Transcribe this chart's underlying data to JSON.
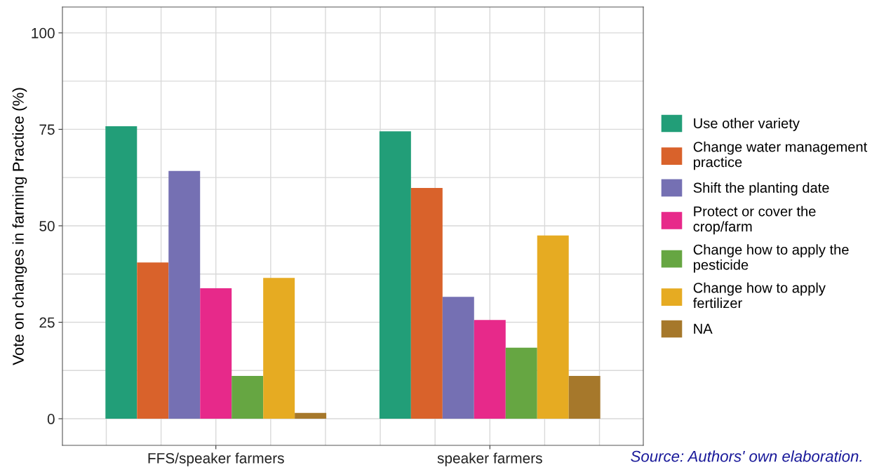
{
  "chart_data": {
    "type": "bar",
    "categories": [
      "FFS/speaker farmers",
      "speaker farmers"
    ],
    "ylabel": "Vote on changes in farming Practice (%)",
    "series": [
      {
        "name": "Use other variety",
        "color": "#229e78",
        "values": [
          75.8,
          74.5
        ]
      },
      {
        "name": "Change water management practice",
        "color": "#d9622b",
        "values": [
          40.5,
          59.8
        ]
      },
      {
        "name": "Shift the planting date",
        "color": "#7570b3",
        "values": [
          64.2,
          31.6
        ]
      },
      {
        "name": "Protect or cover the crop/farm",
        "color": "#e7298a",
        "values": [
          33.8,
          25.6
        ]
      },
      {
        "name": "Change how to apply the pesticide",
        "color": "#66a642",
        "values": [
          11.1,
          18.4
        ]
      },
      {
        "name": "Change how to apply fertilizer",
        "color": "#e6ab22",
        "values": [
          36.5,
          47.5
        ]
      },
      {
        "name": "NA",
        "color": "#a6782b",
        "values": [
          1.5,
          11.1
        ]
      }
    ],
    "ylim": [
      -6.9,
      106.7
    ],
    "yticks": [
      0,
      25,
      50,
      75,
      100
    ],
    "grid": true,
    "legend": "right",
    "annotations": [
      "Source: Authors' own elaboration."
    ]
  }
}
